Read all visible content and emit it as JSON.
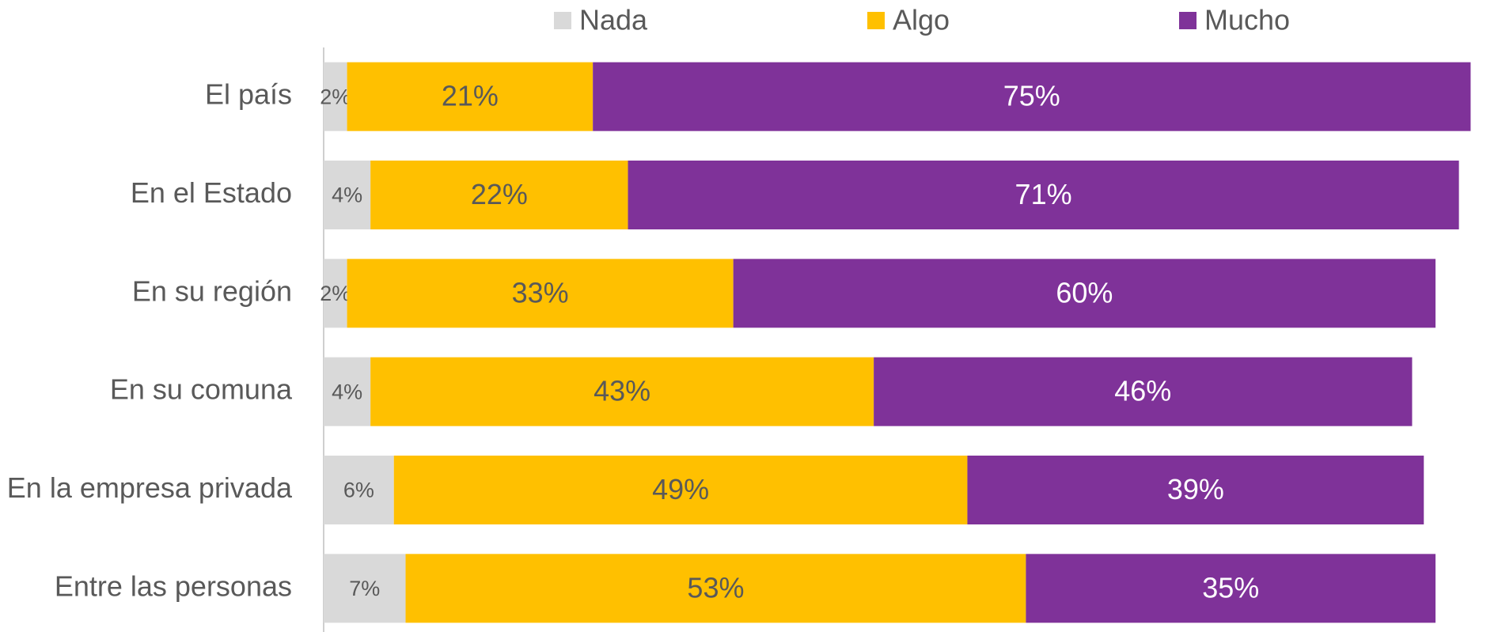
{
  "chart_data": {
    "type": "bar",
    "orientation": "horizontal",
    "stacked": true,
    "categories": [
      "El país",
      "En el Estado",
      "En su región",
      "En su comuna",
      "En la empresa privada",
      "Entre las personas"
    ],
    "series": [
      {
        "name": "Nada",
        "color": "#d9d9d9",
        "values": [
          2,
          4,
          2,
          4,
          6,
          7
        ],
        "value_labels": [
          "2%",
          "4%",
          "2%",
          "4%",
          "6%",
          "7%"
        ]
      },
      {
        "name": "Algo",
        "color": "#ffc000",
        "values": [
          21,
          22,
          33,
          43,
          49,
          53
        ],
        "value_labels": [
          "21%",
          "22%",
          "33%",
          "43%",
          "49%",
          "53%"
        ]
      },
      {
        "name": "Mucho",
        "color": "#7f3299",
        "values": [
          75,
          71,
          60,
          46,
          39,
          35
        ],
        "value_labels": [
          "75%",
          "71%",
          "60%",
          "46%",
          "39%",
          "35%"
        ]
      }
    ],
    "xlim": [
      0,
      100
    ],
    "legend": "top"
  }
}
